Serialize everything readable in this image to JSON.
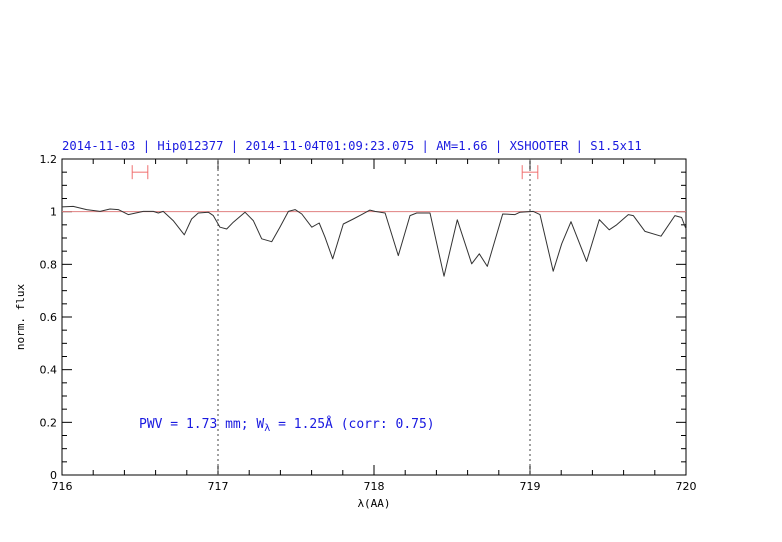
{
  "chart_data": {
    "type": "line",
    "title": "2014-11-03 | Hip012377 | 2014-11-04T01:09:23.075 | AM=1.66 | XSHOOTER | S1.5x11",
    "xlabel": "λ(AA)",
    "ylabel": "norm. flux",
    "xlim": [
      716,
      720
    ],
    "ylim": [
      0,
      1.2
    ],
    "x_ticks": [
      "716",
      "717",
      "718",
      "719",
      "720"
    ],
    "x_tick_values": [
      716,
      717,
      718,
      719,
      720
    ],
    "x_minor_step": 0.2,
    "y_ticks": [
      "0",
      "0.2",
      "0.4",
      "0.6",
      "0.8",
      "1",
      "1.2"
    ],
    "y_tick_values": [
      0,
      0.2,
      0.4,
      0.6,
      0.8,
      1,
      1.2
    ],
    "y_minor_step": 0.05,
    "grid": false,
    "reference_line_y": 1,
    "vertical_dotted_lines_x": [
      717,
      719
    ],
    "error_bars": [
      {
        "x_range": [
          716.45,
          716.55
        ],
        "y": 1.15
      },
      {
        "x_range": [
          718.95,
          719.05
        ],
        "y": 1.15
      }
    ],
    "annotation": {
      "prefix": "PWV = 1.73 mm; W",
      "subscript": "λ",
      "suffix": " = 1.25Å (corr: 0.75)"
    },
    "colors": {
      "spectrum": "#333333",
      "reference_line": "#e08080",
      "error_bars": "#f07070",
      "text": "#1a1ae0"
    },
    "series": [
      {
        "x": [
          716.0,
          716.072,
          716.158,
          716.244,
          716.308,
          716.361,
          716.425,
          716.521,
          716.585,
          716.617,
          716.649,
          716.713,
          716.784,
          716.831,
          716.874,
          716.938,
          716.97,
          717.013,
          717.056,
          717.098,
          717.173,
          717.226,
          717.28,
          717.344,
          717.397,
          717.451,
          717.494,
          717.537,
          717.601,
          717.649,
          717.686,
          717.735,
          717.803,
          717.867,
          717.921,
          717.974,
          718.006,
          718.071,
          718.156,
          718.231,
          718.274,
          718.359,
          718.449,
          718.534,
          718.626,
          718.675,
          718.726,
          718.825,
          718.904,
          718.936,
          719.021,
          719.064,
          719.149,
          719.203,
          719.263,
          719.363,
          719.444,
          719.508,
          719.556,
          719.63,
          719.662,
          719.737,
          719.84,
          719.929,
          719.972,
          720.0
        ],
        "y": [
          1.018,
          1.02,
          1.008,
          1.001,
          1.01,
          1.008,
          0.989,
          1.001,
          1.001,
          0.995,
          1.001,
          0.966,
          0.912,
          0.972,
          0.995,
          0.998,
          0.985,
          0.941,
          0.934,
          0.96,
          0.998,
          0.966,
          0.897,
          0.886,
          0.941,
          1.001,
          1.008,
          0.991,
          0.941,
          0.957,
          0.903,
          0.821,
          0.953,
          0.972,
          0.989,
          1.006,
          1.001,
          0.995,
          0.833,
          0.985,
          0.995,
          0.995,
          0.755,
          0.969,
          0.802,
          0.84,
          0.792,
          0.991,
          0.989,
          0.998,
          1.001,
          0.989,
          0.774,
          0.878,
          0.962,
          0.811,
          0.97,
          0.931,
          0.95,
          0.989,
          0.985,
          0.925,
          0.907,
          0.985,
          0.978,
          0.934
        ]
      }
    ]
  }
}
